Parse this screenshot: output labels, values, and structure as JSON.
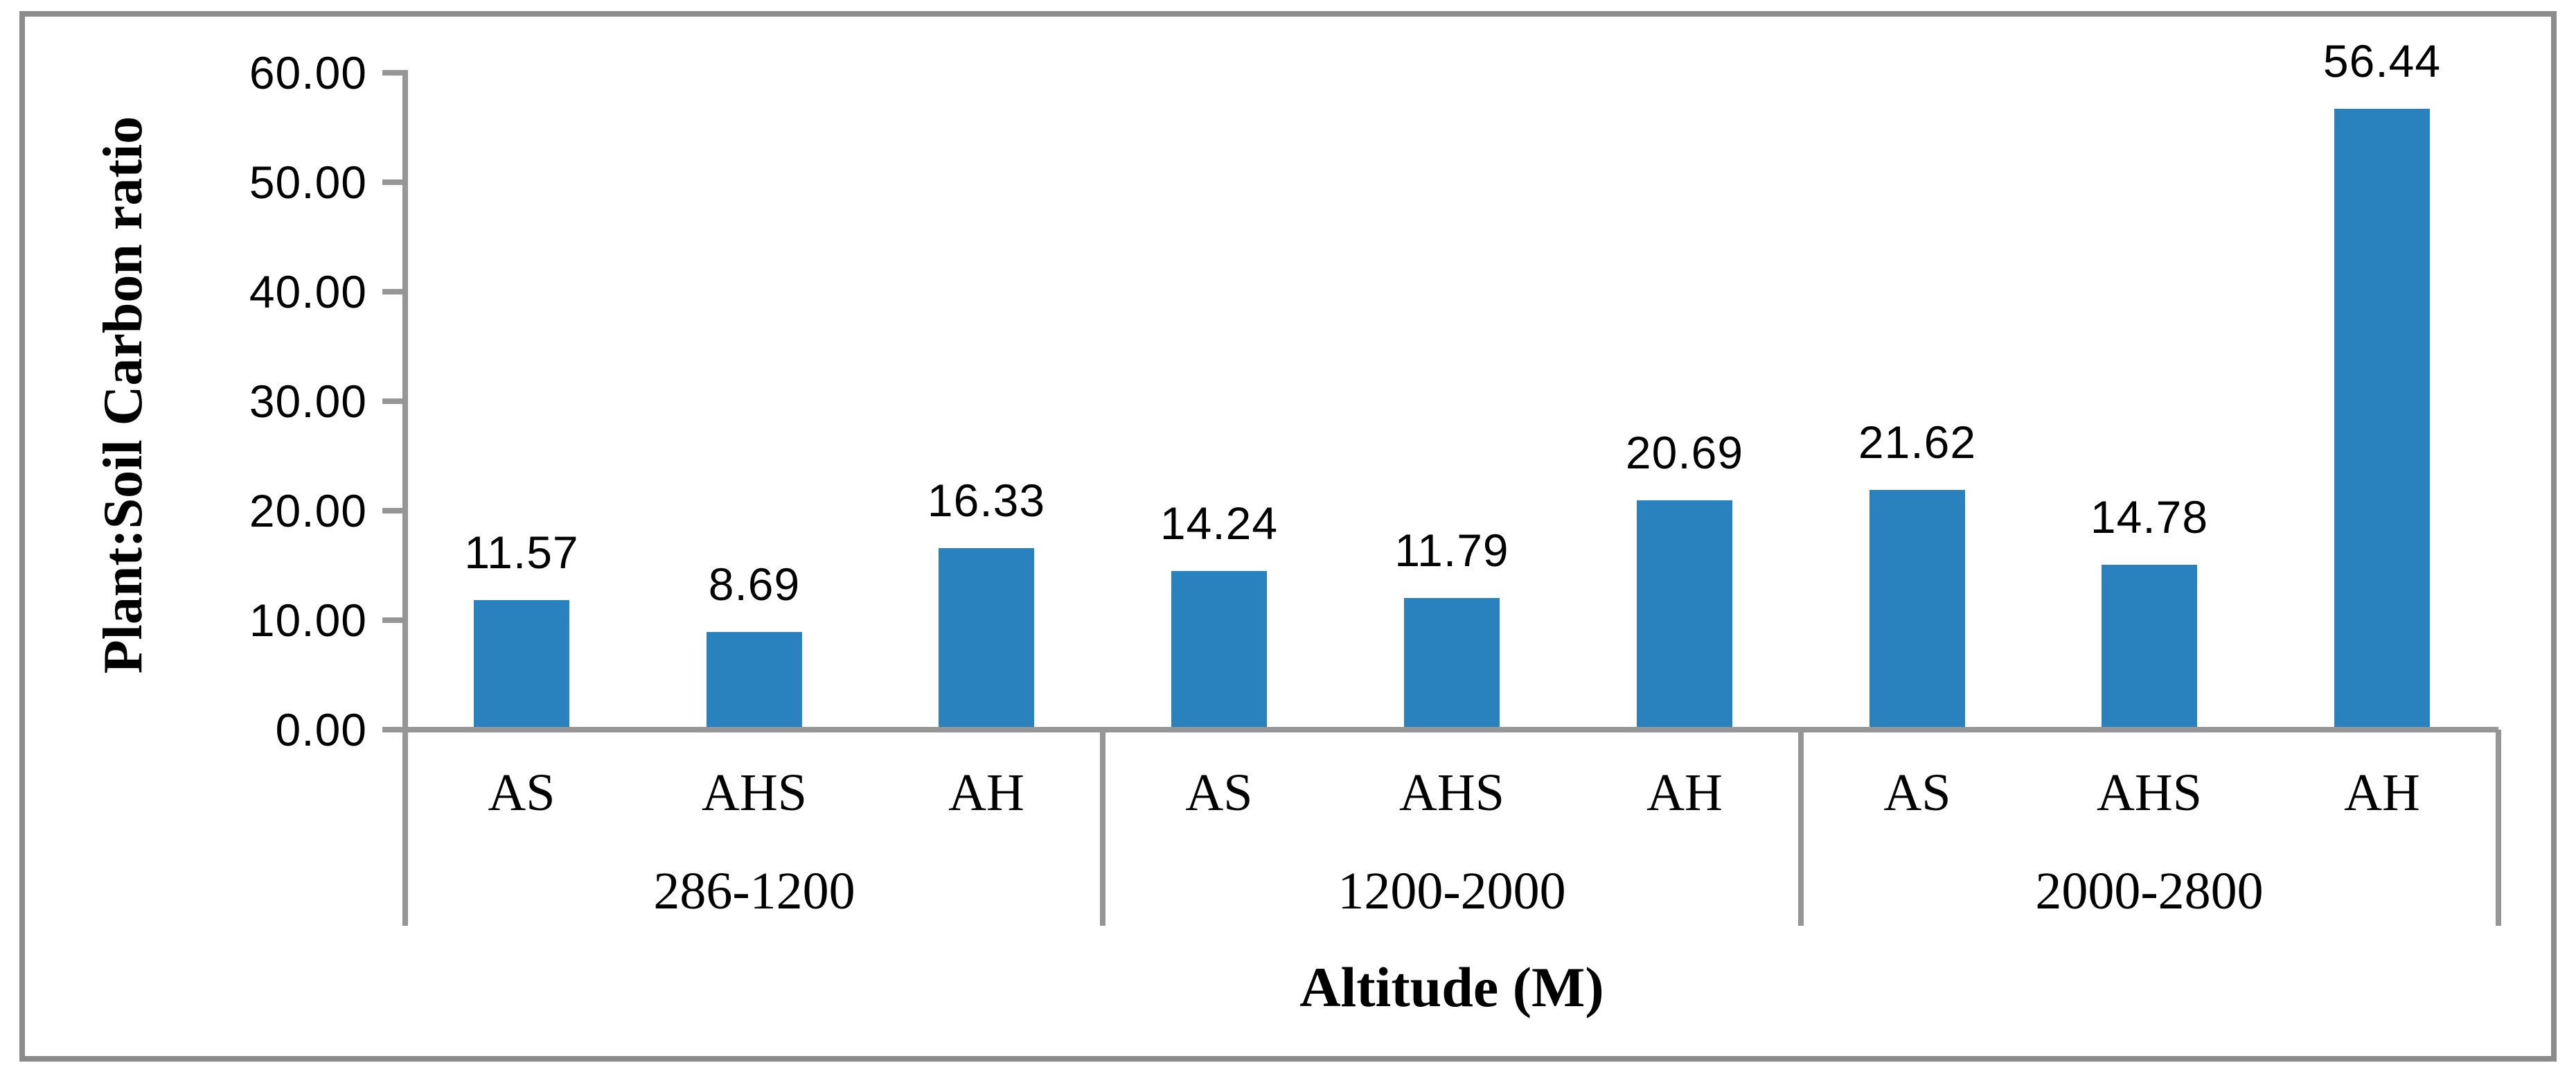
{
  "chart_data": {
    "type": "bar",
    "title": "",
    "ylabel": "Plant:Soil Carbon ratio",
    "xlabel": "Altitude (M)",
    "ylim": [
      0,
      60
    ],
    "grid": false,
    "legend": "none",
    "bar_color": "#2981BD",
    "axis_color": "#969696",
    "frame_color": "#8C8C8C",
    "yticks": [
      {
        "value": 0,
        "label": "0.00"
      },
      {
        "value": 10,
        "label": "10.00"
      },
      {
        "value": 20,
        "label": "20.00"
      },
      {
        "value": 30,
        "label": "30.00"
      },
      {
        "value": 40,
        "label": "40.00"
      },
      {
        "value": 50,
        "label": "50.00"
      },
      {
        "value": 60,
        "label": "60.00"
      }
    ],
    "groups": [
      {
        "label": "286-1200",
        "bars": [
          {
            "category": "AS",
            "value": 11.57,
            "value_label": "11.57"
          },
          {
            "category": "AHS",
            "value": 8.69,
            "value_label": "8.69"
          },
          {
            "category": "AH",
            "value": 16.33,
            "value_label": "16.33"
          }
        ]
      },
      {
        "label": "1200-2000",
        "bars": [
          {
            "category": "AS",
            "value": 14.24,
            "value_label": "14.24"
          },
          {
            "category": "AHS",
            "value": 11.79,
            "value_label": "11.79"
          },
          {
            "category": "AH",
            "value": 20.69,
            "value_label": "20.69"
          }
        ]
      },
      {
        "label": "2000-2800",
        "bars": [
          {
            "category": "AS",
            "value": 21.62,
            "value_label": "21.62"
          },
          {
            "category": "AHS",
            "value": 14.78,
            "value_label": "14.78"
          },
          {
            "category": "AH",
            "value": 56.44,
            "value_label": "56.44"
          }
        ]
      }
    ]
  }
}
